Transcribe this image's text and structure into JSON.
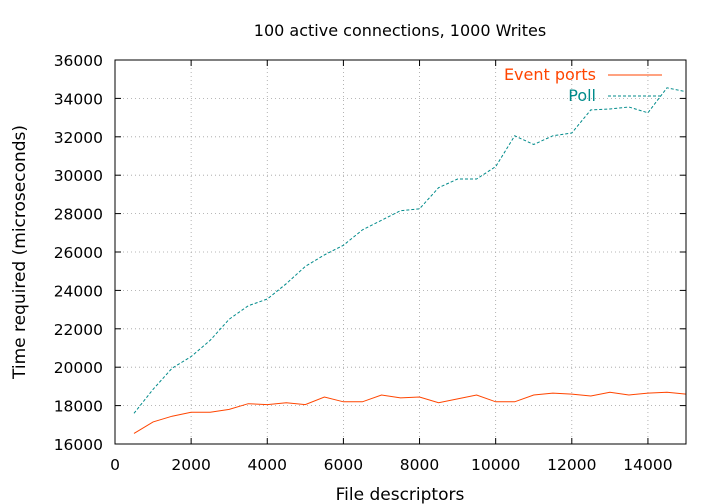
{
  "chart_data": {
    "type": "line",
    "title": "100 active connections, 1000 Writes",
    "xlabel": "File descriptors",
    "ylabel": "Time required (microseconds)",
    "xlim": [
      0,
      15000
    ],
    "ylim": [
      16000,
      36000
    ],
    "x_ticks": [
      0,
      2000,
      4000,
      6000,
      8000,
      10000,
      12000,
      14000
    ],
    "y_ticks": [
      16000,
      18000,
      20000,
      22000,
      24000,
      26000,
      28000,
      30000,
      32000,
      34000,
      36000
    ],
    "grid": true,
    "legend_position": "top-right",
    "x": [
      500,
      1000,
      1500,
      2000,
      2500,
      3000,
      3500,
      4000,
      4500,
      5000,
      5500,
      6000,
      6500,
      7000,
      7500,
      8000,
      8500,
      9000,
      9500,
      10000,
      10500,
      11000,
      11500,
      12000,
      12500,
      13000,
      13500,
      14000,
      14500,
      15000
    ],
    "series": [
      {
        "name": "Event ports",
        "color": "#ff4500",
        "dash": "solid",
        "values": [
          16550,
          17150,
          17450,
          17650,
          17650,
          17800,
          18100,
          18050,
          18150,
          18050,
          18450,
          18200,
          18200,
          18550,
          18400,
          18450,
          18150,
          18350,
          18550,
          18200,
          18200,
          18550,
          18650,
          18600,
          18500,
          18700,
          18550,
          18650,
          18700,
          18600
        ]
      },
      {
        "name": "Poll",
        "color": "#008b8b",
        "dash": "dashed",
        "values": [
          17600,
          18850,
          19950,
          20550,
          21400,
          22500,
          23200,
          23550,
          24350,
          25250,
          25850,
          26350,
          27150,
          27650,
          28150,
          28250,
          29350,
          29800,
          29800,
          30450,
          32050,
          31600,
          32050,
          32200,
          33400,
          33450,
          33550,
          33250,
          34550,
          34350
        ]
      }
    ]
  }
}
